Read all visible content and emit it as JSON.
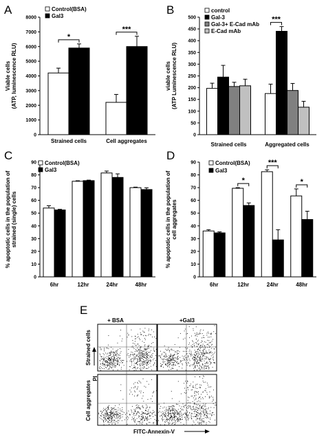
{
  "panels": {
    "A": "A",
    "B": "B",
    "C": "C",
    "D": "D",
    "E": "E"
  },
  "chart_data": [
    {
      "panel": "A",
      "type": "bar",
      "ylabel": [
        "Viable cells",
        "(ATP, luminescence RLU)"
      ],
      "ylim": [
        0,
        8000
      ],
      "yticks": [
        0,
        1000,
        2000,
        3000,
        4000,
        5000,
        6000,
        7000,
        8000
      ],
      "categories": [
        "Strained cells",
        "Cell aggregates"
      ],
      "series": [
        {
          "name": "Control(BSA)",
          "color": "#ffffff",
          "values": [
            4200,
            2200
          ],
          "errors": [
            330,
            540
          ]
        },
        {
          "name": "Gal3",
          "color": "#000000",
          "values": [
            5900,
            6000
          ],
          "errors": [
            280,
            700
          ]
        }
      ],
      "significance": [
        {
          "label": "*",
          "category": 0
        },
        {
          "label": "***",
          "category": 1
        }
      ],
      "legend": "top-left"
    },
    {
      "panel": "B",
      "type": "bar",
      "ylabel": [
        "viable cells",
        "(ATP Luminescence RLU)"
      ],
      "ylim": [
        0,
        500
      ],
      "yticks": [
        0,
        50,
        100,
        150,
        200,
        250,
        300,
        350,
        400,
        450,
        500
      ],
      "categories": [
        "Strained cells",
        "Aggregated cells"
      ],
      "series": [
        {
          "name": "control",
          "color": "#ffffff",
          "values": [
            197,
            175
          ],
          "errors": [
            22,
            40
          ]
        },
        {
          "name": "Gal-3",
          "color": "#000000",
          "values": [
            245,
            440
          ],
          "errors": [
            50,
            20
          ]
        },
        {
          "name": "Gal-3+ E-Cad mAb",
          "color": "#808080",
          "values": [
            205,
            188
          ],
          "errors": [
            18,
            30
          ]
        },
        {
          "name": "E-Cad mAb",
          "color": "#c0c0c0",
          "values": [
            208,
            117
          ],
          "errors": [
            28,
            25
          ]
        }
      ],
      "significance": [
        {
          "label": "***",
          "category": 1
        }
      ],
      "legend": "top-left"
    },
    {
      "panel": "C",
      "type": "bar",
      "ylabel": [
        "% apoptotic cells in the population of",
        "strained (single) cells"
      ],
      "ylim": [
        0,
        90
      ],
      "yticks": [
        0,
        10,
        20,
        30,
        40,
        50,
        60,
        70,
        80,
        90
      ],
      "categories": [
        "6hr",
        "12hr",
        "24hr",
        "48hr"
      ],
      "series": [
        {
          "name": "Control(BSA)",
          "color": "#ffffff",
          "values": [
            54,
            75,
            81.5,
            70
          ],
          "errors": [
            1.8,
            0.4,
            1.5,
            0.4
          ]
        },
        {
          "name": "Gal3",
          "color": "#000000",
          "values": [
            52.5,
            75.5,
            78,
            68.5
          ],
          "errors": [
            0.5,
            0.4,
            2.8,
            1.4
          ]
        }
      ],
      "significance": [],
      "legend": "top-left"
    },
    {
      "panel": "D",
      "type": "bar",
      "ylabel": [
        "% apoptotic cells in the population of",
        "cell aggregates"
      ],
      "ylim": [
        0,
        90
      ],
      "yticks": [
        0,
        10,
        20,
        30,
        40,
        50,
        60,
        70,
        80,
        90
      ],
      "categories": [
        "6hr",
        "12hr",
        "24hr",
        "48hr"
      ],
      "series": [
        {
          "name": "Control(BSA)",
          "color": "#ffffff",
          "values": [
            36,
            69.5,
            82.5,
            63.5
          ],
          "errors": [
            1.0,
            0.5,
            1.5,
            5.5
          ]
        },
        {
          "name": "Gal3",
          "color": "#000000",
          "values": [
            34.5,
            56,
            29,
            45
          ],
          "errors": [
            0.8,
            2.0,
            8.0,
            6.5
          ]
        }
      ],
      "significance": [
        {
          "label": "*",
          "category": 1
        },
        {
          "label": "***",
          "category": 2
        },
        {
          "label": "*",
          "category": 3
        }
      ],
      "legend": "top-left"
    }
  ],
  "flow": {
    "col_labels": [
      "+ BSA",
      "+Gal3"
    ],
    "row_labels": [
      "Strained cells",
      "Cell aggregates"
    ],
    "y_axis_label": "PI",
    "x_axis_label": "FITC-Annexin-V"
  }
}
